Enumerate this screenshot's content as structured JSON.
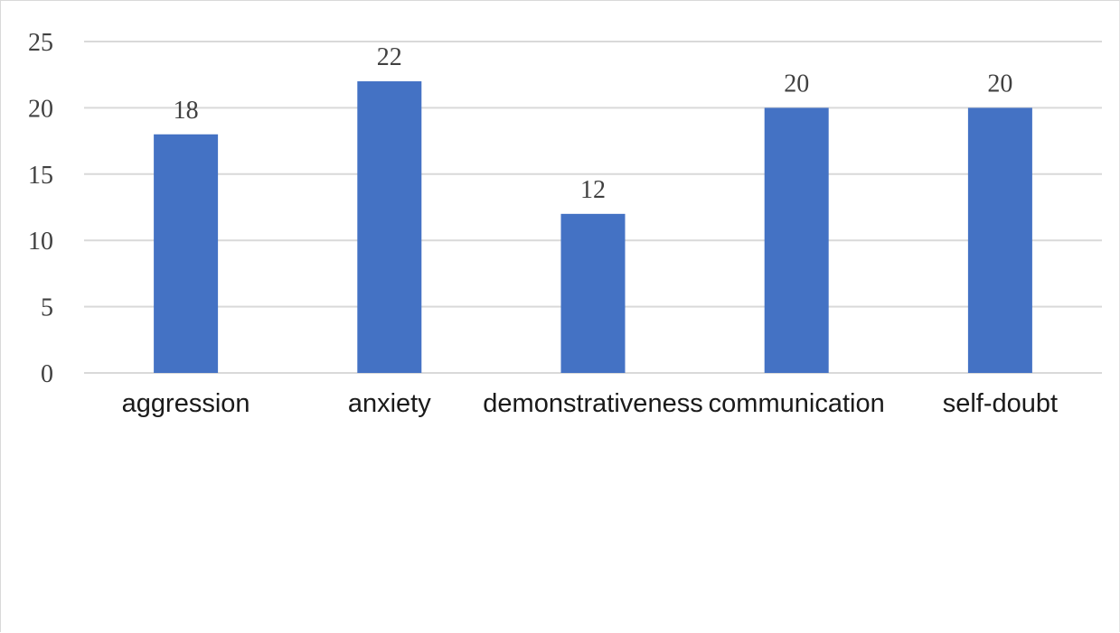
{
  "chart_data": {
    "type": "bar",
    "categories": [
      "aggression",
      "anxiety",
      "demonstrativeness",
      "communication",
      "self-doubt"
    ],
    "values": [
      18,
      22,
      12,
      20,
      20
    ],
    "data_labels": [
      "18",
      "22",
      "12",
      "20",
      "20"
    ],
    "yticks": [
      "0",
      "5",
      "10",
      "15",
      "20",
      "25"
    ],
    "ylim": [
      0,
      25
    ],
    "grid": true,
    "bar_color": "#4472c4",
    "grid_color": "#d9d9d9"
  }
}
